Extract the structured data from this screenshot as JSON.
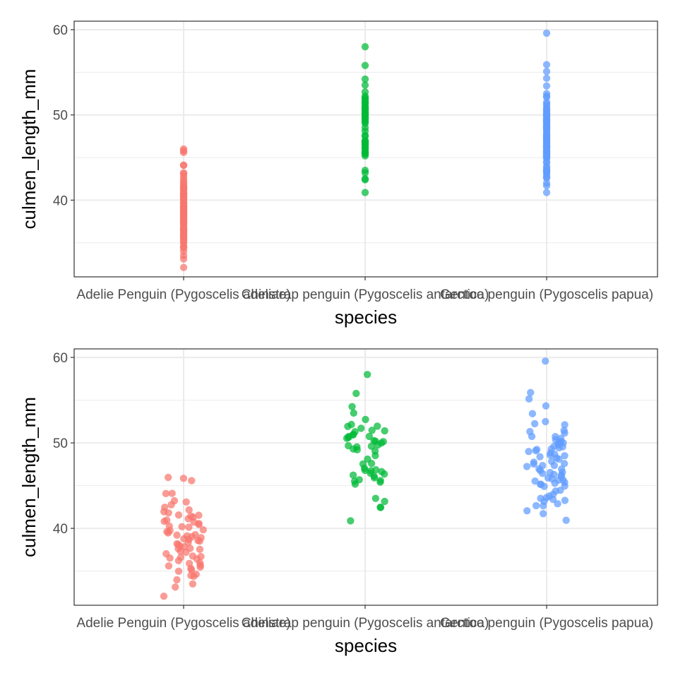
{
  "colors": {
    "species": [
      "#F8766D",
      "#00BA38",
      "#619CFF"
    ],
    "grid": "#EBEBEB",
    "border": "#333333",
    "tick_text": "#4D4D4D"
  },
  "chart_data": [
    {
      "type": "scatter",
      "variant": "strip",
      "xlabel": "species",
      "ylabel": "culmen_length_mm",
      "categories": [
        "Adelie Penguin (Pygoscelis adeliae)",
        "Chinstrap penguin (Pygoscelis antarctica)",
        "Gentoo penguin (Pygoscelis papua)"
      ],
      "ylim": [
        31,
        61
      ],
      "yticks": [
        40,
        50,
        60
      ],
      "y_minor": [
        35,
        45,
        55
      ],
      "series": [
        {
          "name": "Adelie Penguin (Pygoscelis adeliae)",
          "values": [
            32.1,
            33.1,
            33.5,
            34.0,
            34.4,
            34.5,
            34.6,
            35.0,
            35.1,
            35.3,
            35.5,
            35.6,
            35.7,
            35.9,
            36.0,
            36.2,
            36.4,
            36.5,
            36.6,
            36.7,
            36.8,
            37.0,
            37.2,
            37.3,
            37.5,
            37.6,
            37.7,
            37.8,
            37.9,
            38.1,
            38.2,
            38.3,
            38.5,
            38.6,
            38.7,
            38.8,
            38.9,
            39.0,
            39.1,
            39.2,
            39.3,
            39.5,
            39.6,
            39.7,
            39.8,
            40.1,
            40.2,
            40.3,
            40.5,
            40.6,
            40.7,
            40.8,
            40.9,
            41.1,
            41.3,
            41.4,
            41.5,
            41.6,
            41.8,
            42.0,
            42.2,
            42.5,
            42.8,
            43.1,
            43.2,
            44.1,
            44.1,
            45.6,
            45.8,
            46.0
          ]
        },
        {
          "name": "Chinstrap penguin (Pygoscelis antarctica)",
          "values": [
            40.9,
            42.4,
            42.5,
            43.2,
            43.5,
            45.2,
            45.4,
            45.5,
            45.6,
            45.7,
            45.9,
            46.1,
            46.2,
            46.4,
            46.5,
            46.6,
            46.7,
            46.8,
            46.9,
            47.0,
            47.5,
            47.6,
            48.1,
            48.5,
            49.0,
            49.2,
            49.3,
            49.5,
            49.6,
            49.7,
            49.8,
            50.0,
            50.1,
            50.2,
            50.3,
            50.5,
            50.6,
            50.7,
            50.8,
            50.9,
            51.0,
            51.3,
            51.4,
            51.5,
            51.7,
            51.9,
            52.0,
            52.2,
            52.7,
            53.5,
            54.2,
            55.8,
            58.0
          ]
        },
        {
          "name": "Gentoo penguin (Pygoscelis papua)",
          "values": [
            40.9,
            41.7,
            42.0,
            42.6,
            42.7,
            42.9,
            43.2,
            43.3,
            43.4,
            43.5,
            43.6,
            43.8,
            44.0,
            44.4,
            44.5,
            44.9,
            45.0,
            45.1,
            45.2,
            45.3,
            45.4,
            45.5,
            45.6,
            45.7,
            45.8,
            45.9,
            46.1,
            46.2,
            46.3,
            46.4,
            46.5,
            46.6,
            46.8,
            46.9,
            47.0,
            47.2,
            47.3,
            47.4,
            47.5,
            47.6,
            47.7,
            47.8,
            48.1,
            48.2,
            48.4,
            48.5,
            48.6,
            48.7,
            48.8,
            49.0,
            49.1,
            49.2,
            49.3,
            49.4,
            49.5,
            49.6,
            49.8,
            49.9,
            50.0,
            50.1,
            50.2,
            50.4,
            50.5,
            50.7,
            50.8,
            51.1,
            51.3,
            51.5,
            52.1,
            52.2,
            52.5,
            53.4,
            54.3,
            55.1,
            55.9,
            59.6
          ]
        }
      ]
    },
    {
      "type": "scatter",
      "variant": "jitter",
      "xlabel": "species",
      "ylabel": "culmen_length_mm",
      "categories": [
        "Adelie Penguin (Pygoscelis adeliae)",
        "Chinstrap penguin (Pygoscelis antarctica)",
        "Gentoo penguin (Pygoscelis papua)"
      ],
      "ylim": [
        31,
        61
      ],
      "yticks": [
        40,
        50,
        60
      ],
      "y_minor": [
        35,
        45,
        55
      ],
      "series": [
        {
          "name": "Adelie Penguin (Pygoscelis adeliae)",
          "values": [
            32.1,
            33.1,
            33.5,
            34.0,
            34.4,
            34.5,
            34.6,
            35.0,
            35.1,
            35.3,
            35.5,
            35.6,
            35.7,
            35.9,
            36.0,
            36.2,
            36.4,
            36.5,
            36.6,
            36.7,
            36.8,
            37.0,
            37.2,
            37.3,
            37.5,
            37.6,
            37.7,
            37.8,
            37.9,
            38.1,
            38.2,
            38.3,
            38.5,
            38.6,
            38.7,
            38.8,
            38.9,
            39.0,
            39.1,
            39.2,
            39.3,
            39.5,
            39.6,
            39.7,
            39.8,
            40.1,
            40.2,
            40.3,
            40.5,
            40.6,
            40.7,
            40.8,
            40.9,
            41.1,
            41.3,
            41.4,
            41.5,
            41.6,
            41.8,
            42.0,
            42.2,
            42.5,
            42.8,
            43.1,
            43.2,
            44.1,
            44.1,
            45.6,
            45.8,
            46.0
          ]
        },
        {
          "name": "Chinstrap penguin (Pygoscelis antarctica)",
          "values": [
            40.9,
            42.4,
            42.5,
            43.2,
            43.5,
            45.2,
            45.4,
            45.5,
            45.6,
            45.7,
            45.9,
            46.1,
            46.2,
            46.4,
            46.5,
            46.6,
            46.7,
            46.8,
            46.9,
            47.0,
            47.5,
            47.6,
            48.1,
            48.5,
            49.0,
            49.2,
            49.3,
            49.5,
            49.6,
            49.7,
            49.8,
            50.0,
            50.1,
            50.2,
            50.3,
            50.5,
            50.6,
            50.7,
            50.8,
            50.9,
            51.0,
            51.3,
            51.4,
            51.5,
            51.7,
            51.9,
            52.0,
            52.2,
            52.7,
            53.5,
            54.2,
            55.8,
            58.0
          ]
        },
        {
          "name": "Gentoo penguin (Pygoscelis papua)",
          "values": [
            40.9,
            41.7,
            42.0,
            42.6,
            42.7,
            42.9,
            43.2,
            43.3,
            43.4,
            43.5,
            43.6,
            43.8,
            44.0,
            44.4,
            44.5,
            44.9,
            45.0,
            45.1,
            45.2,
            45.3,
            45.4,
            45.5,
            45.6,
            45.7,
            45.8,
            45.9,
            46.1,
            46.2,
            46.3,
            46.4,
            46.5,
            46.6,
            46.8,
            46.9,
            47.0,
            47.2,
            47.3,
            47.4,
            47.5,
            47.6,
            47.7,
            47.8,
            48.1,
            48.2,
            48.4,
            48.5,
            48.6,
            48.7,
            48.8,
            49.0,
            49.1,
            49.2,
            49.3,
            49.4,
            49.5,
            49.6,
            49.8,
            49.9,
            50.0,
            50.1,
            50.2,
            50.4,
            50.5,
            50.7,
            50.8,
            51.1,
            51.3,
            51.5,
            52.1,
            52.2,
            52.5,
            53.4,
            54.3,
            55.1,
            55.9,
            59.6
          ]
        }
      ]
    }
  ]
}
